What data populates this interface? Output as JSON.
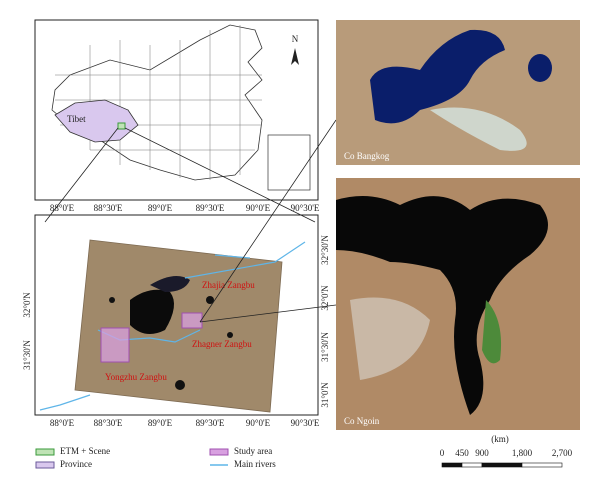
{
  "inset": {
    "label": "Tibet",
    "north": "N"
  },
  "main_map": {
    "top_ticks": [
      "88°0'E",
      "88°30'E",
      "89°0'E",
      "89°30'E",
      "90°0'E",
      "90°30'E"
    ],
    "bottom_ticks": [
      "88°0'E",
      "88°30'E",
      "89°0'E",
      "89°30'E",
      "90°0'E",
      "90°30'E"
    ],
    "left_ticks": [
      "32°0'N",
      "31°30'N"
    ],
    "right_ticks": [
      "32°30'N",
      "32°0'N",
      "31°30'N",
      "31°0'N"
    ],
    "rivers": [
      "Zhajia Zangbu",
      "Zhagner Zangbu",
      "Yongzhu Zangbu"
    ]
  },
  "photos": [
    {
      "label": "Co Bangkog"
    },
    {
      "label": "Co Ngoin"
    }
  ],
  "legend": [
    "ETM + Scene",
    "Province",
    "Study area",
    "Main rivers"
  ],
  "scale": {
    "unit": "(km)",
    "labels": [
      "0",
      "450",
      "900",
      "1,800",
      "2,700"
    ]
  }
}
